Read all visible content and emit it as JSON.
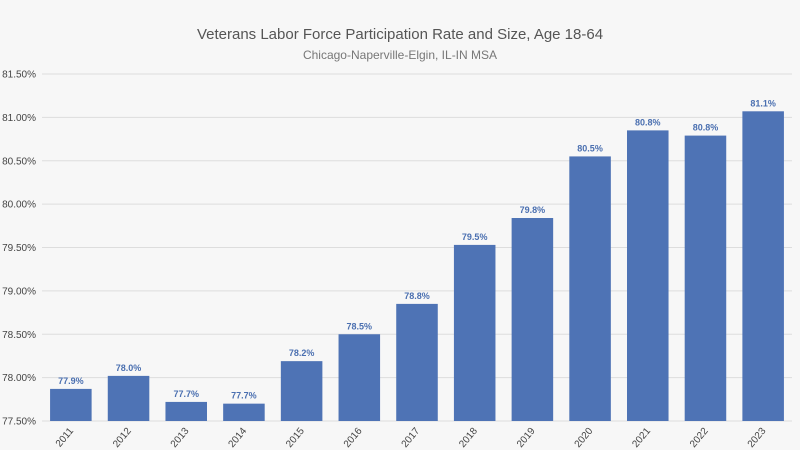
{
  "chart_data": {
    "type": "bar",
    "title": "Veterans Labor Force Participation Rate and Size, Age 18-64",
    "subtitle": "Chicago-Naperville-Elgin, IL-IN MSA",
    "categories": [
      "2011",
      "2012",
      "2013",
      "2014",
      "2015",
      "2016",
      "2017",
      "2018",
      "2019",
      "2020",
      "2021",
      "2022",
      "2023"
    ],
    "values": [
      77.87,
      78.02,
      77.72,
      77.7,
      78.19,
      78.5,
      78.85,
      79.53,
      79.84,
      80.55,
      80.85,
      80.79,
      81.07
    ],
    "data_labels": [
      "77.9%",
      "78.0%",
      "77.7%",
      "77.7%",
      "78.2%",
      "78.5%",
      "78.8%",
      "79.5%",
      "79.8%",
      "80.5%",
      "80.8%",
      "80.8%",
      "81.1%"
    ],
    "yticks": [
      77.5,
      78.0,
      78.5,
      79.0,
      79.5,
      80.0,
      80.5,
      81.0,
      81.5
    ],
    "ytick_labels": [
      "77.50%",
      "78.00%",
      "78.50%",
      "79.00%",
      "79.50%",
      "80.00%",
      "80.50%",
      "81.00%",
      "81.50%"
    ],
    "ylim": [
      77.5,
      81.5
    ],
    "xlabel": "",
    "ylabel": "",
    "grid": true,
    "bar_color": "#4e73b5",
    "label_color": "#4a6fb0"
  }
}
